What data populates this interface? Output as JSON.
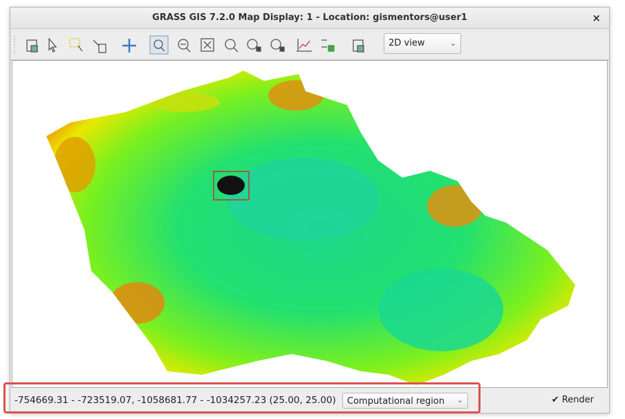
{
  "window": {
    "title": "GRASS GIS 7.2.0 Map Display: 1 - Location: gismentors@user1",
    "close": "×"
  },
  "toolbar": {
    "view_combo": "2D view"
  },
  "status_bar": {
    "coordinates": "-754669.31 - -723519.07, -1058681.77 - -1034257.23 (25.00, 25.00)",
    "mode_combo": "Computational region",
    "render_checkbox": "Render"
  }
}
